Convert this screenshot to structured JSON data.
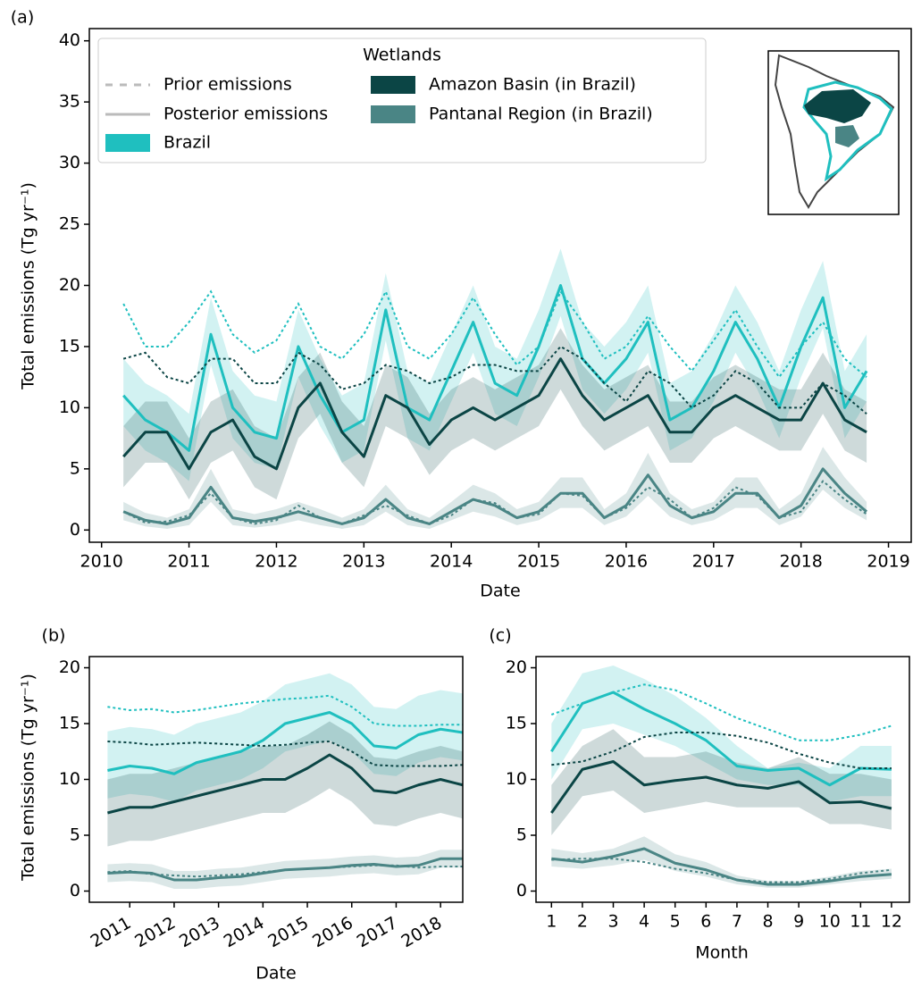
{
  "chart_data": [
    {
      "type": "line",
      "panel_label": "(a)",
      "x_label": "Date",
      "y_label": "Total emissions (Tg yr⁻¹)",
      "xlim": [
        2009.86,
        2019.26
      ],
      "ylim": [
        -1,
        41
      ],
      "xticks": [
        2010,
        2011,
        2012,
        2013,
        2014,
        2015,
        2016,
        2017,
        2018,
        2019
      ],
      "yticks": [
        0,
        5,
        10,
        15,
        20,
        25,
        30,
        35,
        40
      ],
      "legend": {
        "title": "Wetlands",
        "line_styles": [
          "Prior emissions",
          "Posterior emissions"
        ]
      },
      "x": [
        2010.25,
        2010.5,
        2010.75,
        2011,
        2011.25,
        2011.5,
        2011.75,
        2012,
        2012.25,
        2012.5,
        2012.75,
        2013,
        2013.25,
        2013.5,
        2013.75,
        2014,
        2014.25,
        2014.5,
        2014.75,
        2015,
        2015.25,
        2015.5,
        2015.75,
        2016,
        2016.25,
        2016.5,
        2016.75,
        2017,
        2017.25,
        2017.5,
        2017.75,
        2018,
        2018.25,
        2018.5,
        2018.75
      ],
      "series": [
        {
          "name": "Brazil",
          "color": "#1fbfbf",
          "posterior": [
            11,
            9,
            8,
            6.5,
            16,
            10,
            8,
            7.5,
            15,
            11,
            8,
            9,
            18,
            10,
            9,
            13,
            17,
            12,
            11,
            15,
            20,
            14,
            12,
            14,
            17,
            9,
            10,
            13,
            17,
            14,
            10,
            15,
            19,
            10,
            13
          ],
          "prior": [
            18.5,
            15,
            15,
            17,
            19.5,
            16,
            14.5,
            15.5,
            18.5,
            15,
            14,
            16,
            19.5,
            15,
            14,
            16,
            19,
            16,
            13.5,
            15,
            19.5,
            17,
            14,
            15,
            17.5,
            15,
            13,
            15.5,
            18,
            15,
            12.5,
            15,
            17,
            14,
            12.5
          ],
          "lower": [
            8.5,
            6.5,
            5.5,
            4,
            13.5,
            7.5,
            5.5,
            5,
            12.5,
            8.5,
            5.5,
            6.5,
            15.5,
            7.5,
            6.5,
            10.5,
            14.5,
            9.5,
            8.5,
            12.5,
            17.5,
            11.5,
            9.5,
            11.5,
            14.5,
            6.5,
            7.5,
            10.5,
            14.5,
            11.5,
            7.5,
            12.5,
            16.5,
            7.5,
            10.5
          ],
          "upper": [
            14,
            12,
            11,
            9.5,
            19,
            13,
            11,
            10.5,
            18,
            14,
            11,
            12,
            21,
            13,
            12,
            16,
            20,
            15,
            14,
            18,
            23,
            17,
            15,
            17,
            20,
            12,
            13,
            16,
            20,
            17,
            13,
            18,
            22,
            13,
            16
          ]
        },
        {
          "name": "Amazon Basin (in Brazil)",
          "color": "#0b4545",
          "posterior": [
            6,
            8,
            8,
            5,
            8,
            9,
            6,
            5,
            10,
            12,
            8,
            6,
            11,
            10,
            7,
            9,
            10,
            9,
            10,
            11,
            14,
            11,
            9,
            10,
            11,
            8,
            8,
            10,
            11,
            10,
            9,
            9,
            12,
            9,
            8
          ],
          "prior": [
            14,
            14.5,
            12.5,
            12,
            14,
            14,
            12,
            12,
            14.5,
            13.5,
            11.5,
            12,
            13.5,
            13,
            12,
            12.5,
            13.5,
            13.5,
            13,
            13,
            15,
            14,
            12,
            10.5,
            13,
            12,
            10,
            11,
            13,
            12,
            10,
            10,
            12,
            11,
            9.5
          ],
          "lower": [
            3.5,
            5.5,
            5.5,
            2.5,
            5.5,
            6.5,
            3.5,
            2.5,
            7.5,
            9.5,
            5.5,
            3.5,
            8.5,
            7.5,
            4.5,
            6.5,
            7.5,
            6.5,
            7.5,
            8.5,
            11.5,
            8.5,
            6.5,
            7.5,
            8.5,
            5.5,
            5.5,
            7.5,
            8.5,
            7.5,
            6.5,
            6.5,
            9.5,
            6.5,
            5.5
          ],
          "upper": [
            8.5,
            10.5,
            10.5,
            7.5,
            10.5,
            11.5,
            8.5,
            7.5,
            12.5,
            14.5,
            10.5,
            8.5,
            13.5,
            12.5,
            9.5,
            11.5,
            12.5,
            11.5,
            12.5,
            13.5,
            16.5,
            13.5,
            11.5,
            12.5,
            13.5,
            10.5,
            10.5,
            12.5,
            13.5,
            12.5,
            11.5,
            11.5,
            14.5,
            11.5,
            10.5
          ]
        },
        {
          "name": "Pantanal Region (in Brazil)",
          "color": "#4a8585",
          "posterior": [
            1.5,
            0.8,
            0.5,
            1,
            3.5,
            1,
            0.7,
            1,
            1.5,
            1,
            0.5,
            1,
            2.5,
            1,
            0.5,
            1.5,
            2.5,
            2,
            1,
            1.5,
            3,
            3,
            1,
            2,
            4.5,
            2,
            1,
            1.5,
            3,
            3,
            1,
            2,
            5,
            3,
            1.5
          ],
          "prior": [
            1.5,
            0.6,
            0.7,
            1.2,
            3,
            1,
            0.5,
            0.8,
            2,
            1,
            0.5,
            1.2,
            2,
            1.2,
            0.5,
            1.2,
            2.5,
            2.2,
            1,
            1.3,
            3,
            2.8,
            1,
            1.8,
            3.5,
            2.5,
            1,
            1.8,
            3.5,
            2.8,
            1,
            1.5,
            4,
            2.5,
            1.3
          ],
          "lower": [
            0.8,
            0.3,
            0.1,
            0.4,
            2.3,
            0.4,
            0.2,
            0.4,
            0.8,
            0.4,
            0.1,
            0.4,
            1.5,
            0.4,
            0.1,
            0.8,
            1.5,
            1.1,
            0.4,
            0.8,
            1.8,
            1.8,
            0.4,
            1.1,
            2.8,
            1.1,
            0.4,
            0.8,
            1.8,
            1.8,
            0.4,
            1.1,
            3.3,
            1.8,
            0.8
          ],
          "upper": [
            2.3,
            1.4,
            1,
            1.7,
            5,
            1.7,
            1.3,
            1.7,
            2.3,
            1.7,
            1,
            1.7,
            3.7,
            1.7,
            1,
            2.3,
            3.7,
            3,
            1.7,
            2.3,
            4.3,
            4.3,
            1.7,
            3,
            6.3,
            3,
            1.7,
            2.3,
            4.3,
            4.3,
            1.7,
            3,
            6.8,
            4.3,
            2.3
          ]
        }
      ]
    },
    {
      "type": "line",
      "panel_label": "(b)",
      "x_label": "Date",
      "y_label": "Total emissions (Tg yr⁻¹)",
      "xlim": [
        2010.09,
        2018.5
      ],
      "ylim": [
        -1,
        21
      ],
      "xticks": [
        2011,
        2012,
        2013,
        2014,
        2015,
        2016,
        2017,
        2018
      ],
      "yticks": [
        0,
        5,
        10,
        15,
        20
      ],
      "x": [
        2010.5,
        2011,
        2011.5,
        2012,
        2012.5,
        2013,
        2013.5,
        2014,
        2014.5,
        2015,
        2015.5,
        2016,
        2016.5,
        2017,
        2017.5,
        2018,
        2018.5
      ],
      "series": [
        {
          "color": "#1fbfbf",
          "posterior": [
            10.8,
            11.2,
            11,
            10.5,
            11.5,
            12,
            12.5,
            13.5,
            15,
            15.5,
            16,
            15,
            13,
            12.8,
            14,
            14.5,
            14.2
          ],
          "prior": [
            16.5,
            16.2,
            16.3,
            16,
            16.2,
            16.5,
            16.8,
            17,
            17.2,
            17.3,
            17.5,
            16.5,
            15,
            14.8,
            14.8,
            14.9,
            14.9
          ],
          "lower": [
            8.3,
            8.7,
            8.5,
            8,
            9,
            9.5,
            10,
            11,
            12.5,
            13,
            13.5,
            12.5,
            10.5,
            10.3,
            11.5,
            12,
            11.7
          ],
          "upper": [
            14.3,
            14.7,
            14.5,
            14,
            15,
            15.5,
            16,
            17,
            18.5,
            19,
            19.5,
            18.5,
            16.5,
            16.3,
            17.5,
            18,
            17.7
          ]
        },
        {
          "color": "#0b4545",
          "posterior": [
            7,
            7.5,
            7.5,
            8,
            8.5,
            9,
            9.5,
            10,
            10,
            11,
            12.2,
            11,
            9,
            8.8,
            9.5,
            10,
            9.5
          ],
          "prior": [
            13.4,
            13.3,
            13.1,
            13.2,
            13.3,
            13.2,
            13.1,
            13,
            13.1,
            13.3,
            13.4,
            12.5,
            11.3,
            11.2,
            11.2,
            11.2,
            11.3
          ],
          "lower": [
            4,
            4.5,
            4.5,
            5,
            5.5,
            6,
            6.5,
            7,
            7,
            8,
            9.2,
            8,
            6,
            5.8,
            6.5,
            7,
            6.5
          ],
          "upper": [
            10,
            10.5,
            10.5,
            11,
            11.5,
            12,
            12.5,
            13,
            13,
            14,
            15.2,
            14,
            12,
            11.8,
            12.5,
            13,
            12.5
          ]
        },
        {
          "color": "#4a8585",
          "posterior": [
            1.6,
            1.7,
            1.6,
            1,
            1,
            1.2,
            1.3,
            1.6,
            1.9,
            2,
            2.1,
            2.3,
            2.4,
            2.2,
            2.3,
            2.9,
            2.9
          ],
          "prior": [
            1.7,
            1.8,
            1.5,
            1.4,
            1.3,
            1.4,
            1.5,
            1.7,
            1.9,
            2,
            2.1,
            2.2,
            2.3,
            2.3,
            2.1,
            2.2,
            2.2
          ],
          "lower": [
            0.8,
            0.9,
            0.8,
            0.2,
            0.2,
            0.4,
            0.5,
            0.8,
            1.1,
            1.2,
            1.3,
            1.5,
            1.6,
            1.4,
            1.5,
            2.1,
            2.1
          ],
          "upper": [
            2.4,
            2.5,
            2.4,
            1.8,
            1.8,
            2,
            2.1,
            2.4,
            2.7,
            2.8,
            2.9,
            3.1,
            3.2,
            3,
            3.1,
            3.7,
            3.7
          ]
        }
      ]
    },
    {
      "type": "line",
      "panel_label": "(c)",
      "x_label": "Month",
      "xlim": [
        0.5,
        12.58
      ],
      "ylim": [
        -1,
        21
      ],
      "xticks": [
        1,
        2,
        3,
        4,
        5,
        6,
        7,
        8,
        9,
        10,
        11,
        12
      ],
      "yticks": [
        0,
        5,
        10,
        15,
        20
      ],
      "x": [
        1,
        2,
        3,
        4,
        5,
        6,
        7,
        8,
        9,
        10,
        11,
        12
      ],
      "series": [
        {
          "color": "#1fbfbf",
          "posterior": [
            12.5,
            16.8,
            17.8,
            16.3,
            15,
            13.5,
            11.2,
            10.8,
            11,
            9.5,
            11,
            10.9
          ],
          "prior": [
            15.8,
            16.8,
            17.8,
            18.5,
            18,
            16.8,
            15.5,
            14.5,
            13.5,
            13.5,
            14,
            14.8
          ],
          "lower": [
            10,
            14.5,
            15,
            14,
            13,
            11.5,
            10,
            9.5,
            9.5,
            8,
            8.5,
            8.5
          ],
          "upper": [
            15,
            19.5,
            20.2,
            19,
            17.5,
            15.5,
            13,
            11,
            11.5,
            11,
            13,
            13
          ]
        },
        {
          "color": "#0b4545",
          "posterior": [
            7,
            10.9,
            11.6,
            9.5,
            9.9,
            10.2,
            9.5,
            9.2,
            9.8,
            7.9,
            8,
            7.4
          ],
          "prior": [
            11.3,
            11.6,
            12.5,
            13.8,
            14.2,
            14.2,
            13.9,
            13.3,
            12.3,
            11.5,
            11,
            11
          ],
          "lower": [
            5,
            8.5,
            9,
            7,
            7.5,
            8,
            7.5,
            7.5,
            7.5,
            6,
            6,
            5.5
          ],
          "upper": [
            9.5,
            13,
            14.5,
            12,
            12,
            12.5,
            11.5,
            11,
            12,
            10.5,
            10.5,
            10
          ]
        },
        {
          "color": "#4a8585",
          "posterior": [
            2.9,
            2.6,
            3.1,
            3.8,
            2.5,
            1.9,
            1,
            0.6,
            0.6,
            0.9,
            1.3,
            1.5
          ],
          "prior": [
            2.8,
            2.9,
            2.9,
            2.6,
            2,
            1.6,
            1,
            0.8,
            0.8,
            1.1,
            1.6,
            1.9
          ],
          "lower": [
            2.2,
            2,
            2.3,
            2.8,
            1.8,
            1.3,
            0.6,
            0.3,
            0.3,
            0.6,
            0.9,
            1.1
          ],
          "upper": [
            3.8,
            3.4,
            3.8,
            4.9,
            3.3,
            2.6,
            1.4,
            0.9,
            0.9,
            1.3,
            1.8,
            2
          ]
        }
      ]
    }
  ]
}
